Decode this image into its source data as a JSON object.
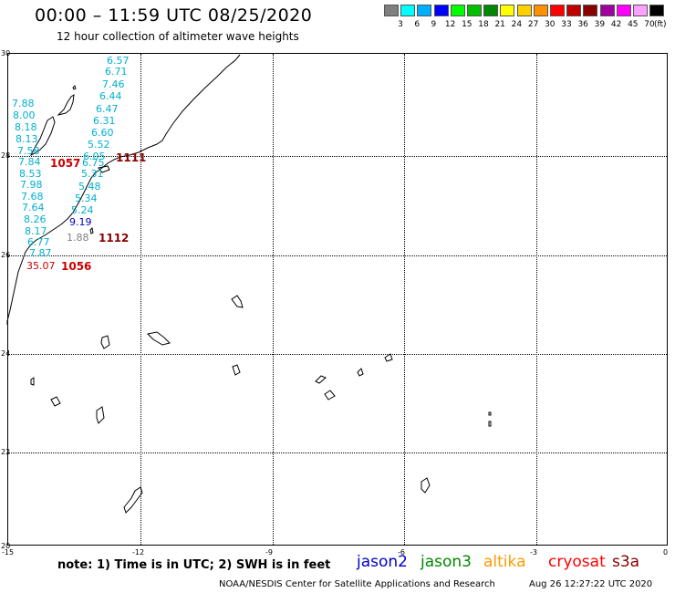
{
  "title": "00:00 – 11:59 UTC 08/25/2020",
  "subtitle": "12 hour collection of altimeter wave heights",
  "legend": {
    "colors": [
      "#808080",
      "#00ffff",
      "#00b0ff",
      "#0000ff",
      "#00ff00",
      "#00c000",
      "#008800",
      "#ffff00",
      "#ffd000",
      "#ff9000",
      "#ff0000",
      "#c00000",
      "#880000",
      "#a000a0",
      "#ff00ff",
      "#ffa0ff",
      "#000000"
    ],
    "labels": [
      "3",
      "6",
      "9",
      "12",
      "15",
      "18",
      "21",
      "24",
      "27",
      "30",
      "33",
      "36",
      "39",
      "42",
      "45",
      "70"
    ],
    "units": "(ft)"
  },
  "axes": {
    "lat_labels": [
      "30",
      "28",
      "26",
      "24",
      "22",
      "20"
    ],
    "lon_labels": [
      "-15",
      "-12",
      "-9",
      "-6",
      "-3",
      "0"
    ]
  },
  "tracks": [
    {
      "id": "1111",
      "color": "#880000"
    },
    {
      "id": "1057",
      "color": "#cc0000"
    },
    {
      "id": "1112",
      "color": "#880000"
    },
    {
      "id": "1056",
      "color": "#cc0000"
    }
  ],
  "observations": [
    {
      "value": "6.57",
      "color": "#00b0d0"
    },
    {
      "value": "6.71",
      "color": "#00b0d0"
    },
    {
      "value": "7.46",
      "color": "#00b0d0"
    },
    {
      "value": "6.44",
      "color": "#00b0d0"
    },
    {
      "value": "6.47",
      "color": "#00b0d0"
    },
    {
      "value": "6.31",
      "color": "#00b0d0"
    },
    {
      "value": "6.60",
      "color": "#00b0d0"
    },
    {
      "value": "5.52",
      "color": "#00b0d0"
    },
    {
      "value": "6.05",
      "color": "#00b0d0"
    },
    {
      "value": "6.75",
      "color": "#00b0d0"
    },
    {
      "value": "5.31",
      "color": "#00b0d0"
    },
    {
      "value": "5.48",
      "color": "#00b0d0"
    },
    {
      "value": "5.34",
      "color": "#00b0d0"
    },
    {
      "value": "5.24",
      "color": "#00b0d0"
    },
    {
      "value": "9.19",
      "color": "#0000cc"
    },
    {
      "value": "1.88",
      "color": "#808080"
    },
    {
      "value": "7.88",
      "color": "#00b0d0"
    },
    {
      "value": "8.00",
      "color": "#00b0d0"
    },
    {
      "value": "8.18",
      "color": "#00b0d0"
    },
    {
      "value": "8.13",
      "color": "#00b0d0"
    },
    {
      "value": "7.58",
      "color": "#00b0d0"
    },
    {
      "value": "7.84",
      "color": "#00b0d0"
    },
    {
      "value": "8.53",
      "color": "#00b0d0"
    },
    {
      "value": "7.98",
      "color": "#00b0d0"
    },
    {
      "value": "7.68",
      "color": "#00b0d0"
    },
    {
      "value": "7.64",
      "color": "#00b0d0"
    },
    {
      "value": "8.26",
      "color": "#00b0d0"
    },
    {
      "value": "8.17",
      "color": "#00b0d0"
    },
    {
      "value": "6.77",
      "color": "#00b0d0"
    },
    {
      "value": "7.87",
      "color": "#00b0d0"
    },
    {
      "value": "35.07",
      "color": "#cc0000"
    }
  ],
  "note": "note: 1) Time is in UTC; 2) SWH is in feet",
  "satellites": [
    {
      "name": "jason2",
      "color": "#0000cc"
    },
    {
      "name": "jason3",
      "color": "#008800"
    },
    {
      "name": "altika",
      "color": "#ff9900"
    },
    {
      "name": "cryosat",
      "color": "#ff0000"
    },
    {
      "name": "s3a",
      "color": "#880000"
    }
  ],
  "credit": "NOAA/NESDIS Center for Satellite Applications and Research",
  "timestamp": "Aug 26 12:27:22 UTC 2020"
}
